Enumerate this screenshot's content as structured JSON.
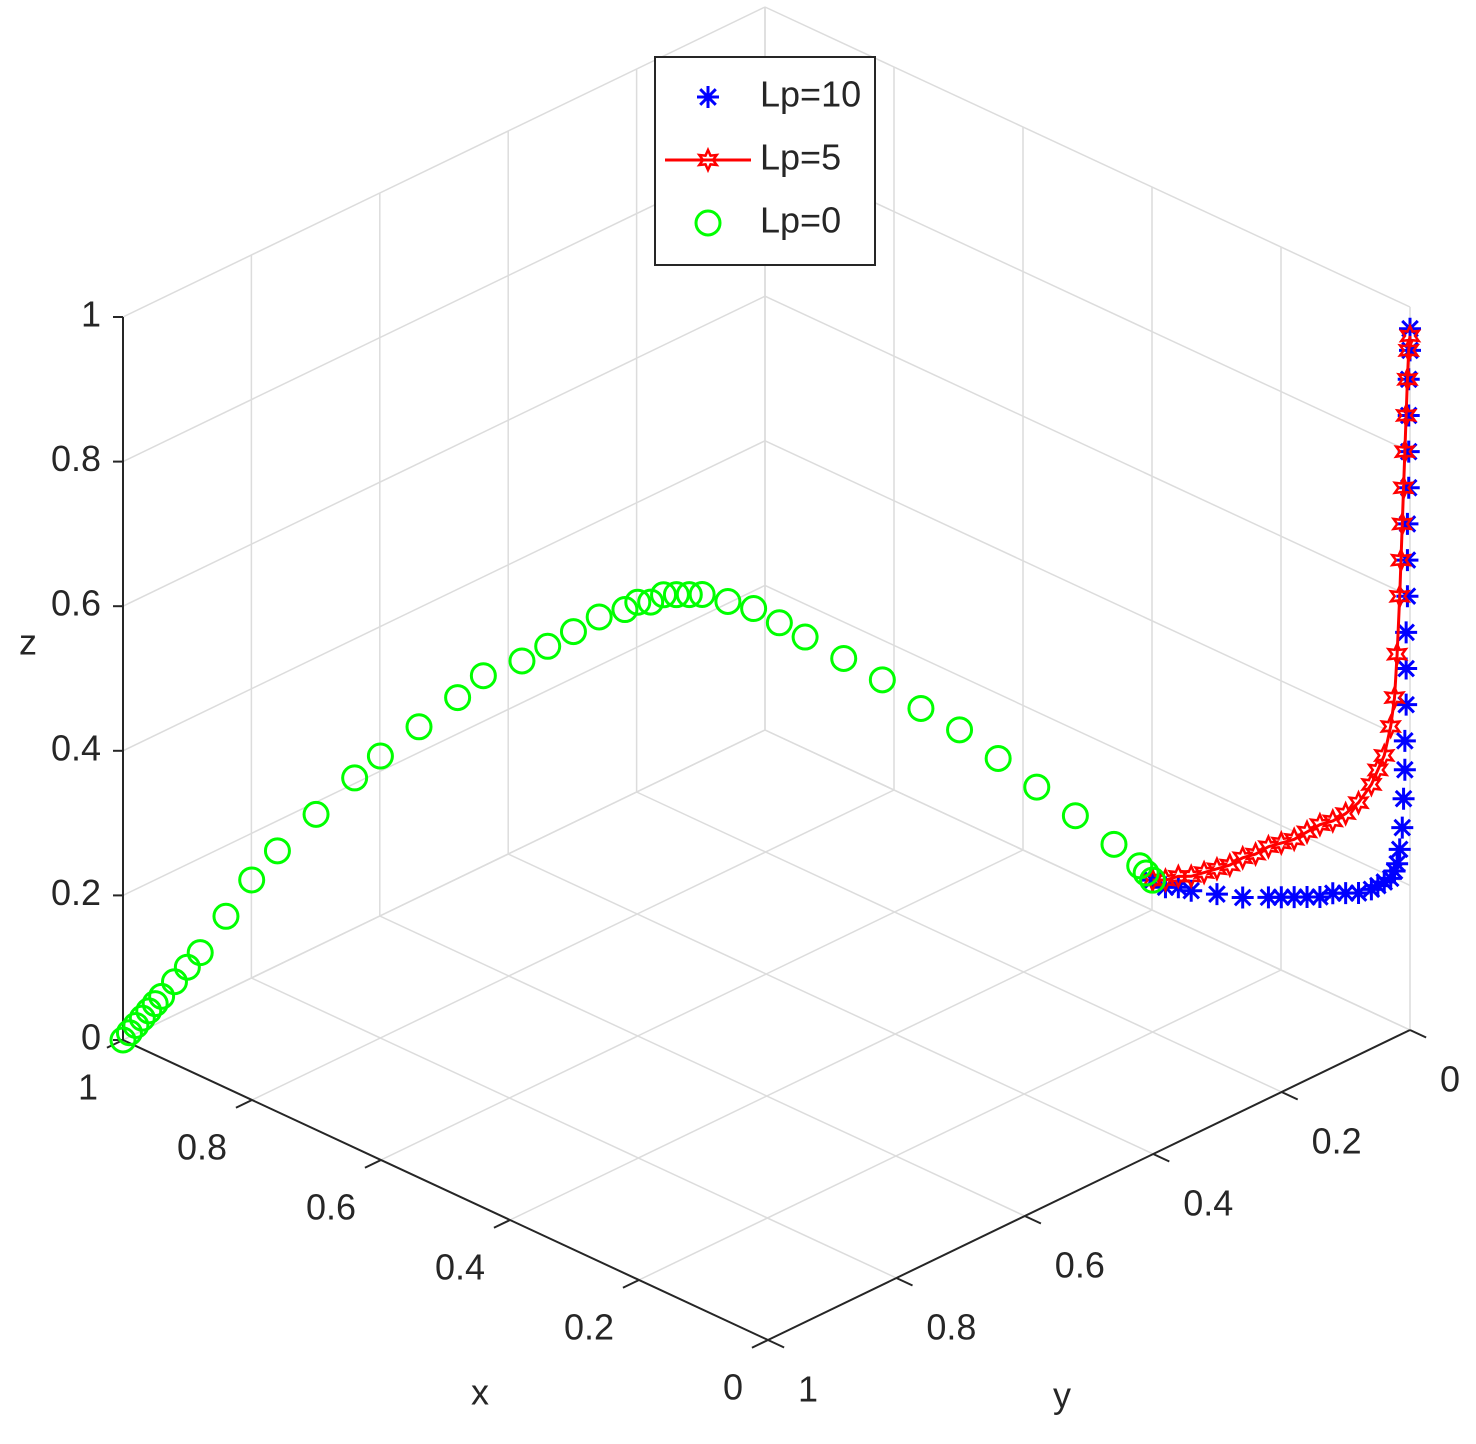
{
  "chart_data": {
    "type": "scatter3",
    "xlabel": "x",
    "ylabel": "y",
    "zlabel": "z",
    "xlim": [
      0,
      1
    ],
    "ylim": [
      0,
      1
    ],
    "zlim": [
      0,
      1
    ],
    "xticks": [
      0,
      0.2,
      0.4,
      0.6,
      0.8,
      1
    ],
    "yticks": [
      0,
      0.2,
      0.4,
      0.6,
      0.8,
      1
    ],
    "zticks": [
      0,
      0.2,
      0.4,
      0.6,
      0.8,
      1
    ],
    "grid": true,
    "legend_location": "north",
    "series": [
      {
        "name": "Lp=10",
        "color": "#0000ff",
        "marker": "asterisk",
        "line": false,
        "x": [
          0.2,
          0.19,
          0.18,
          0.17,
          0.15,
          0.13,
          0.11,
          0.1,
          0.09,
          0.08,
          0.07,
          0.06,
          0.05,
          0.04,
          0.03,
          0.025,
          0.02,
          0.015,
          0.012,
          0.01,
          0.008,
          0.006,
          0.005,
          0.004,
          0.004,
          0.003,
          0.003,
          0.003,
          0.002,
          0.002,
          0.002,
          0.001,
          0.001,
          0.001,
          0.001,
          0,
          0
        ],
        "y": [
          0.2,
          0.19,
          0.18,
          0.17,
          0.15,
          0.13,
          0.11,
          0.1,
          0.09,
          0.08,
          0.07,
          0.06,
          0.05,
          0.04,
          0.03,
          0.025,
          0.02,
          0.015,
          0.012,
          0.01,
          0.008,
          0.006,
          0.005,
          0.004,
          0.004,
          0.003,
          0.003,
          0.003,
          0.002,
          0.002,
          0.002,
          0.001,
          0.001,
          0.001,
          0.001,
          0,
          0
        ],
        "z": [
          0.21,
          0.2,
          0.2,
          0.195,
          0.19,
          0.185,
          0.185,
          0.185,
          0.185,
          0.185,
          0.185,
          0.19,
          0.19,
          0.19,
          0.195,
          0.2,
          0.205,
          0.21,
          0.22,
          0.23,
          0.25,
          0.28,
          0.32,
          0.36,
          0.4,
          0.45,
          0.5,
          0.55,
          0.6,
          0.65,
          0.7,
          0.75,
          0.8,
          0.85,
          0.9,
          0.94,
          0.97
        ]
      },
      {
        "name": "Lp=5",
        "color": "#ff0000",
        "marker": "hexagram",
        "line": true,
        "x": [
          0.2,
          0.19,
          0.18,
          0.17,
          0.16,
          0.15,
          0.14,
          0.13,
          0.12,
          0.11,
          0.1,
          0.09,
          0.08,
          0.07,
          0.06,
          0.05,
          0.04,
          0.03,
          0.025,
          0.02,
          0.015,
          0.012,
          0.01,
          0.008,
          0.007,
          0.006,
          0.005,
          0.004,
          0.003,
          0.002,
          0.001,
          0
        ],
        "y": [
          0.2,
          0.19,
          0.18,
          0.17,
          0.16,
          0.15,
          0.14,
          0.13,
          0.12,
          0.11,
          0.1,
          0.09,
          0.08,
          0.07,
          0.06,
          0.05,
          0.04,
          0.03,
          0.025,
          0.02,
          0.015,
          0.012,
          0.01,
          0.008,
          0.007,
          0.006,
          0.005,
          0.004,
          0.003,
          0.002,
          0.001,
          0
        ],
        "z": [
          0.21,
          0.21,
          0.215,
          0.215,
          0.22,
          0.225,
          0.23,
          0.24,
          0.245,
          0.255,
          0.26,
          0.265,
          0.275,
          0.285,
          0.29,
          0.3,
          0.315,
          0.34,
          0.36,
          0.38,
          0.42,
          0.46,
          0.52,
          0.6,
          0.65,
          0.7,
          0.75,
          0.8,
          0.85,
          0.9,
          0.94,
          0.96
        ]
      },
      {
        "name": "Lp=0",
        "color": "#00ff00",
        "marker": "circle",
        "line": false,
        "x": [
          1,
          0.995,
          0.99,
          0.985,
          0.98,
          0.975,
          0.97,
          0.96,
          0.95,
          0.94,
          0.92,
          0.9,
          0.88,
          0.85,
          0.82,
          0.8,
          0.77,
          0.74,
          0.72,
          0.69,
          0.67,
          0.65,
          0.63,
          0.61,
          0.6,
          0.59,
          0.58,
          0.57,
          0.56,
          0.55,
          0.53,
          0.51,
          0.49,
          0.47,
          0.44,
          0.41,
          0.38,
          0.35,
          0.32,
          0.29,
          0.26,
          0.23,
          0.21,
          0.205,
          0.2
        ],
        "y": [
          1,
          0.995,
          0.99,
          0.985,
          0.98,
          0.975,
          0.97,
          0.96,
          0.95,
          0.94,
          0.92,
          0.9,
          0.88,
          0.85,
          0.82,
          0.8,
          0.77,
          0.74,
          0.72,
          0.69,
          0.67,
          0.65,
          0.63,
          0.61,
          0.6,
          0.59,
          0.58,
          0.57,
          0.56,
          0.55,
          0.53,
          0.51,
          0.49,
          0.47,
          0.44,
          0.41,
          0.38,
          0.35,
          0.32,
          0.29,
          0.26,
          0.23,
          0.21,
          0.205,
          0.2
        ],
        "z": [
          0,
          0.01,
          0.02,
          0.03,
          0.04,
          0.05,
          0.06,
          0.08,
          0.1,
          0.12,
          0.17,
          0.22,
          0.26,
          0.31,
          0.36,
          0.39,
          0.43,
          0.47,
          0.5,
          0.52,
          0.54,
          0.56,
          0.58,
          0.59,
          0.6,
          0.6,
          0.61,
          0.61,
          0.61,
          0.61,
          0.6,
          0.59,
          0.57,
          0.55,
          0.52,
          0.49,
          0.45,
          0.42,
          0.38,
          0.34,
          0.3,
          0.26,
          0.23,
          0.22,
          0.21
        ]
      }
    ]
  }
}
